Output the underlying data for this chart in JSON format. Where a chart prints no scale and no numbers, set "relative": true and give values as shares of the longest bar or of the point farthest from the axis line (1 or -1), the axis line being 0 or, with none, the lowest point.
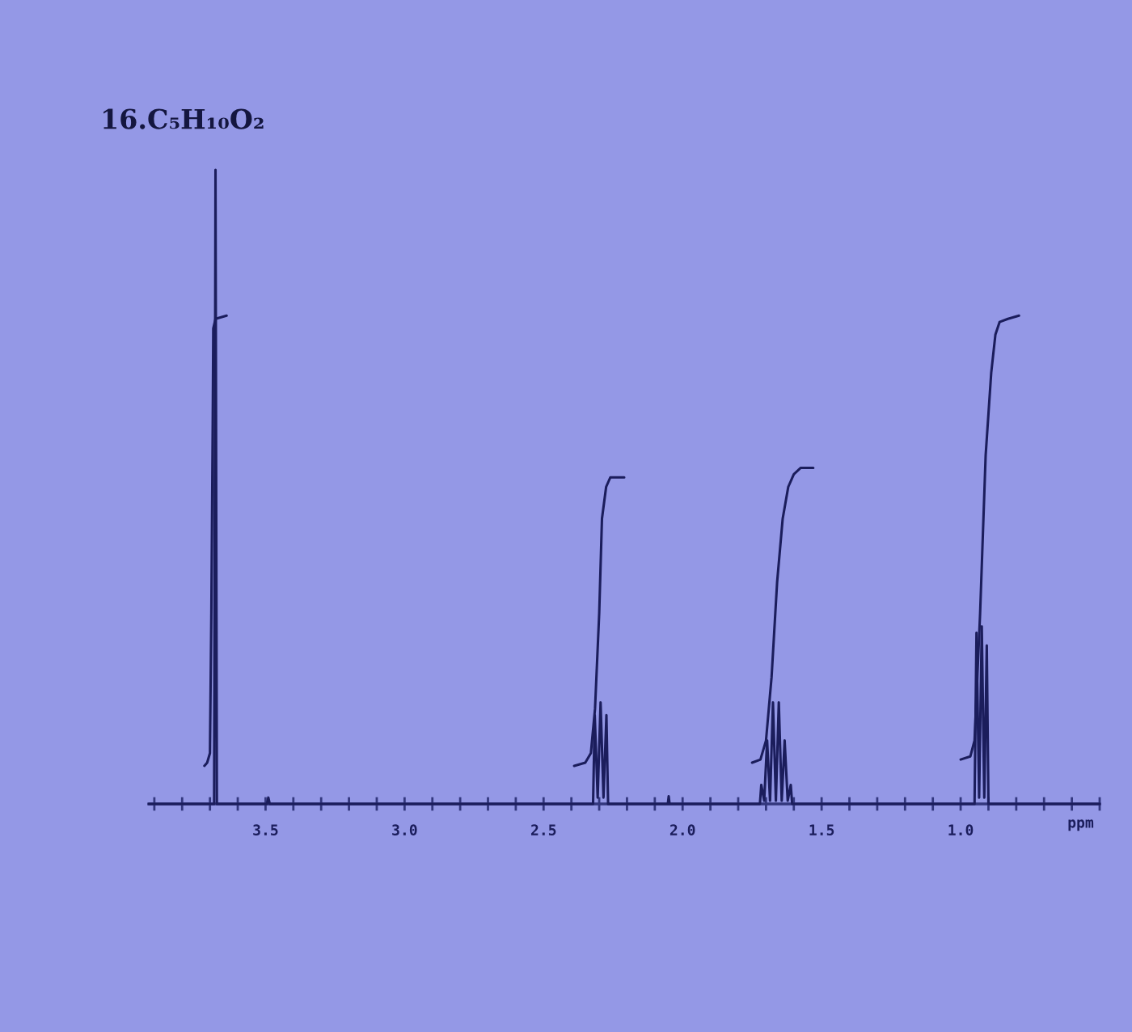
{
  "chart_data": {
    "type": "line",
    "title": "16.C₅H₁₀O₂",
    "xlabel": "ppm",
    "relative": true,
    "grid": false,
    "marker": "none",
    "line_style": "solid",
    "xlim": [
      3.92,
      0.5
    ],
    "xticks": [
      {
        "value": 3.9,
        "label": null
      },
      {
        "value": 3.8,
        "label": null
      },
      {
        "value": 3.7,
        "label": null
      },
      {
        "value": 3.6,
        "label": null
      },
      3.5,
      {
        "value": 3.4,
        "label": null
      },
      {
        "value": 3.3,
        "label": null
      },
      {
        "value": 3.2,
        "label": null
      },
      {
        "value": 3.1,
        "label": null
      },
      {
        "value": 3,
        "label": "3.0"
      },
      {
        "value": 2.9,
        "label": null
      },
      {
        "value": 2.8,
        "label": null
      },
      {
        "value": 2.7,
        "label": null
      },
      {
        "value": 2.6,
        "label": null
      },
      2.5,
      {
        "value": 2.4,
        "label": null
      },
      {
        "value": 2.3,
        "label": null
      },
      {
        "value": 2.2,
        "label": null
      },
      {
        "value": 2.1,
        "label": null
      },
      {
        "value": 2,
        "label": "2.0"
      },
      {
        "value": 1.9,
        "label": null
      },
      {
        "value": 1.8,
        "label": null
      },
      {
        "value": 1.7,
        "label": null
      },
      {
        "value": 1.6,
        "label": null
      },
      1.5,
      {
        "value": 1.4,
        "label": null
      },
      {
        "value": 1.3,
        "label": null
      },
      {
        "value": 1.2,
        "label": null
      },
      {
        "value": 1.1,
        "label": null
      },
      {
        "value": 1,
        "label": "1.0"
      },
      {
        "value": 0.9,
        "label": null
      },
      {
        "value": 0.8,
        "label": null
      },
      {
        "value": 0.7,
        "label": null
      },
      {
        "value": 0.6,
        "label": null
      },
      {
        "value": 0.5,
        "label": null
      }
    ],
    "series": [
      {
        "color": "#1b1d5c",
        "x": [
          3.92,
          3.685,
          3.68,
          3.675,
          3.495,
          3.49,
          3.485,
          2.322,
          2.316,
          2.3055,
          2.295,
          2.2845,
          2.274,
          2.268,
          2.053,
          2.05,
          2.047,
          1.722,
          1.717,
          1.7065,
          1.696,
          1.6855,
          1.675,
          1.6645,
          1.654,
          1.6435,
          1.633,
          1.622,
          1.611,
          1.606,
          0.95,
          0.943,
          0.9335,
          0.924,
          0.915,
          0.906,
          0.9,
          0.5
        ],
        "values": [
          0,
          0,
          1.0,
          0,
          0,
          0.01,
          0,
          0,
          0.14,
          0.01,
          0.16,
          0.01,
          0.14,
          0,
          0,
          0.012,
          0,
          0,
          0.03,
          0.005,
          0.1,
          0.005,
          0.16,
          0.005,
          0.16,
          0.005,
          0.1,
          0.005,
          0.03,
          0,
          0,
          0.27,
          0.01,
          0.28,
          0.01,
          0.25,
          0,
          0
        ]
      },
      {
        "color": "#1b1d5c",
        "x": [
          3.72,
          3.71,
          3.7,
          3.695,
          3.69,
          3.688,
          3.68,
          3.64
        ],
        "values": [
          0.06,
          0.065,
          0.08,
          0.3,
          0.6,
          0.75,
          0.765,
          0.77
        ]
      },
      {
        "color": "#1b1d5c",
        "x": [
          2.39,
          2.35,
          2.33,
          2.315,
          2.3,
          2.29,
          2.275,
          2.26,
          2.21
        ],
        "values": [
          0.06,
          0.065,
          0.08,
          0.15,
          0.3,
          0.45,
          0.5,
          0.515,
          0.515
        ]
      },
      {
        "color": "#1b1d5c",
        "x": [
          1.75,
          1.72,
          1.7,
          1.68,
          1.66,
          1.64,
          1.62,
          1.6,
          1.575,
          1.53
        ],
        "values": [
          0.065,
          0.07,
          0.1,
          0.2,
          0.35,
          0.45,
          0.5,
          0.52,
          0.53,
          0.53
        ]
      },
      {
        "color": "#1b1d5c",
        "x": [
          1.0,
          0.965,
          0.95,
          0.93,
          0.91,
          0.89,
          0.875,
          0.86,
          0.83,
          0.79
        ],
        "values": [
          0.07,
          0.075,
          0.1,
          0.3,
          0.55,
          0.68,
          0.74,
          0.76,
          0.765,
          0.77
        ]
      }
    ]
  }
}
